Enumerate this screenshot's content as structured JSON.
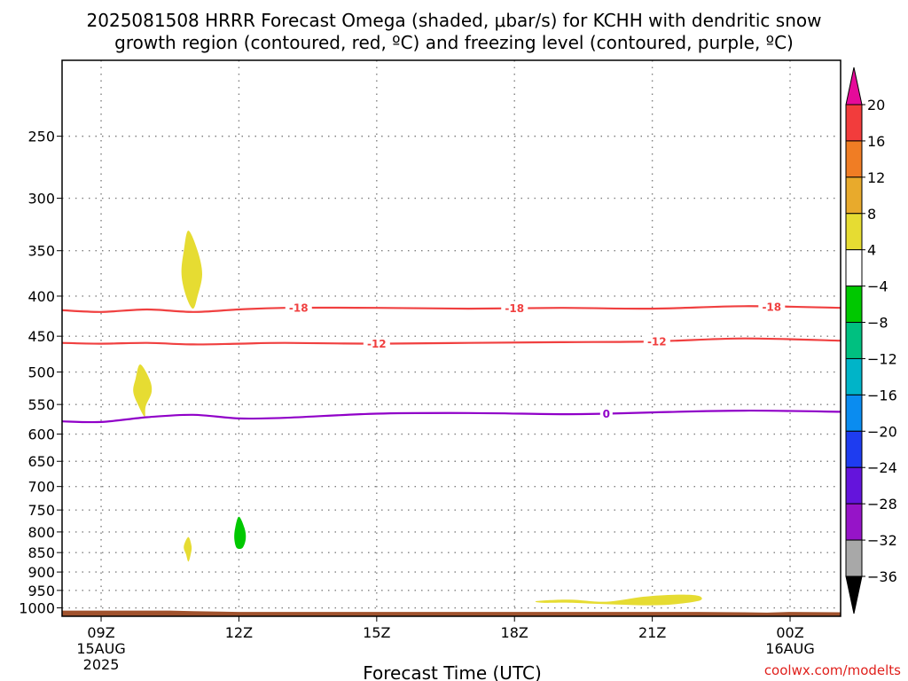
{
  "chart_data": {
    "type": "contour",
    "title_lines": [
      "2025081508 HRRR Forecast Omega (shaded, μbar/s) for KCHH with dendritic snow",
      "growth region (contoured, red, ºC) and freezing level (contoured, purple, ºC)"
    ],
    "xlabel": "Forecast Time (UTC)",
    "credit": "coolwx.com/modelts",
    "x_hours_range": [
      8.15,
      25.1
    ],
    "y_pressure_range": [
      200,
      1025
    ],
    "y_scale": "log",
    "grid": true,
    "x_ticks": [
      {
        "hour": 9,
        "lines": [
          "09Z",
          "15AUG",
          "2025"
        ]
      },
      {
        "hour": 12,
        "lines": [
          "12Z"
        ]
      },
      {
        "hour": 15,
        "lines": [
          "15Z"
        ]
      },
      {
        "hour": 18,
        "lines": [
          "18Z"
        ]
      },
      {
        "hour": 21,
        "lines": [
          "21Z"
        ]
      },
      {
        "hour": 24,
        "lines": [
          "00Z",
          "16AUG"
        ]
      }
    ],
    "y_ticks": [
      250,
      300,
      350,
      400,
      450,
      500,
      550,
      600,
      650,
      700,
      750,
      800,
      850,
      900,
      950,
      1000
    ],
    "surface_pressure": [
      {
        "hour": 8.15,
        "p": 1008
      },
      {
        "hour": 10.5,
        "p": 1008
      },
      {
        "hour": 11.0,
        "p": 1010
      },
      {
        "hour": 12.0,
        "p": 1012
      },
      {
        "hour": 17.0,
        "p": 1012
      },
      {
        "hour": 22.0,
        "p": 1012
      },
      {
        "hour": 23.0,
        "p": 1013
      },
      {
        "hour": 23.5,
        "p": 1014
      },
      {
        "hour": 24.0,
        "p": 1012
      },
      {
        "hour": 25.1,
        "p": 1013
      }
    ],
    "contours": [
      {
        "value": "-18",
        "color": "#f04040",
        "points": [
          [
            8.15,
            417
          ],
          [
            9,
            419
          ],
          [
            10,
            416
          ],
          [
            11,
            419
          ],
          [
            12,
            416
          ],
          [
            13,
            414
          ],
          [
            15,
            414
          ],
          [
            17,
            415
          ],
          [
            19,
            414
          ],
          [
            21,
            415
          ],
          [
            23,
            412
          ],
          [
            25.1,
            414
          ]
        ],
        "labels": [
          13.3,
          18.0,
          23.6
        ]
      },
      {
        "value": "-12",
        "color": "#f04040",
        "points": [
          [
            8.15,
            459
          ],
          [
            9,
            460
          ],
          [
            10,
            459
          ],
          [
            11,
            461
          ],
          [
            12,
            460
          ],
          [
            13,
            459
          ],
          [
            15,
            460
          ],
          [
            17,
            459
          ],
          [
            19,
            458
          ],
          [
            21,
            457
          ],
          [
            23,
            453
          ],
          [
            25.1,
            456
          ]
        ],
        "labels": [
          15.0,
          21.1
        ]
      },
      {
        "value": "0",
        "color": "#9000c8",
        "points": [
          [
            8.15,
            578
          ],
          [
            9,
            579
          ],
          [
            10,
            571
          ],
          [
            11,
            567
          ],
          [
            12,
            573
          ],
          [
            13,
            572
          ],
          [
            15,
            565
          ],
          [
            17,
            564
          ],
          [
            19,
            566
          ],
          [
            20,
            565
          ],
          [
            21,
            563
          ],
          [
            23,
            560
          ],
          [
            25.1,
            562
          ]
        ],
        "labels": [
          20.0
        ]
      }
    ],
    "omega_blobs": [
      {
        "color": "#e6dc32",
        "points": [
          [
            10.9,
            330
          ],
          [
            11.1,
            350
          ],
          [
            11.2,
            375
          ],
          [
            11.1,
            400
          ],
          [
            11.0,
            415
          ],
          [
            10.85,
            400
          ],
          [
            10.75,
            375
          ],
          [
            10.8,
            350
          ]
        ]
      },
      {
        "color": "#e6dc32",
        "points": [
          [
            9.85,
            489
          ],
          [
            10.05,
            510
          ],
          [
            10.1,
            530
          ],
          [
            9.97,
            553
          ],
          [
            9.95,
            570
          ],
          [
            9.82,
            553
          ],
          [
            9.7,
            530
          ],
          [
            9.75,
            510
          ]
        ]
      },
      {
        "color": "#e6dc32",
        "points": [
          [
            10.9,
            812
          ],
          [
            10.97,
            835
          ],
          [
            10.95,
            855
          ],
          [
            10.9,
            873
          ],
          [
            10.85,
            855
          ],
          [
            10.8,
            835
          ]
        ]
      },
      {
        "color": "#00c800",
        "points": [
          [
            12.0,
            765
          ],
          [
            12.12,
            790
          ],
          [
            12.15,
            815
          ],
          [
            12.08,
            838
          ],
          [
            11.95,
            838
          ],
          [
            11.9,
            815
          ],
          [
            11.92,
            790
          ]
        ]
      },
      {
        "color": "#e6dc32",
        "points": [
          [
            18.5,
            980
          ],
          [
            19.2,
            976
          ],
          [
            20.0,
            982
          ],
          [
            20.8,
            968
          ],
          [
            21.5,
            962
          ],
          [
            22.0,
            965
          ],
          [
            22.0,
            980
          ],
          [
            21.2,
            992
          ],
          [
            20.2,
            990
          ],
          [
            19.2,
            985
          ],
          [
            18.6,
            985
          ]
        ]
      }
    ],
    "colorbar": {
      "bands": [
        {
          "color": "#e60a9a",
          "label": "20"
        },
        {
          "color": "#f23c3c",
          "label": "16"
        },
        {
          "color": "#f07d24",
          "label": "12"
        },
        {
          "color": "#e8aa2c",
          "label": "8"
        },
        {
          "color": "#e6dc32",
          "label": "4"
        },
        {
          "color": "#ffffff",
          "label": "−4"
        },
        {
          "color": "#00c800",
          "label": "−8"
        },
        {
          "color": "#00c080",
          "label": "−12"
        },
        {
          "color": "#00b4c8",
          "label": "−16"
        },
        {
          "color": "#0a8cf0",
          "label": "−20"
        },
        {
          "color": "#1e3cf0",
          "label": "−24"
        },
        {
          "color": "#6414dc",
          "label": "−28"
        },
        {
          "color": "#9614c8",
          "label": "−32"
        },
        {
          "color": "#a8a8a8",
          "label": "−36"
        },
        {
          "color": "#000000",
          "label": ""
        }
      ]
    },
    "colors": {
      "surface_fill": "#a0522d",
      "grid": "#808080"
    }
  }
}
